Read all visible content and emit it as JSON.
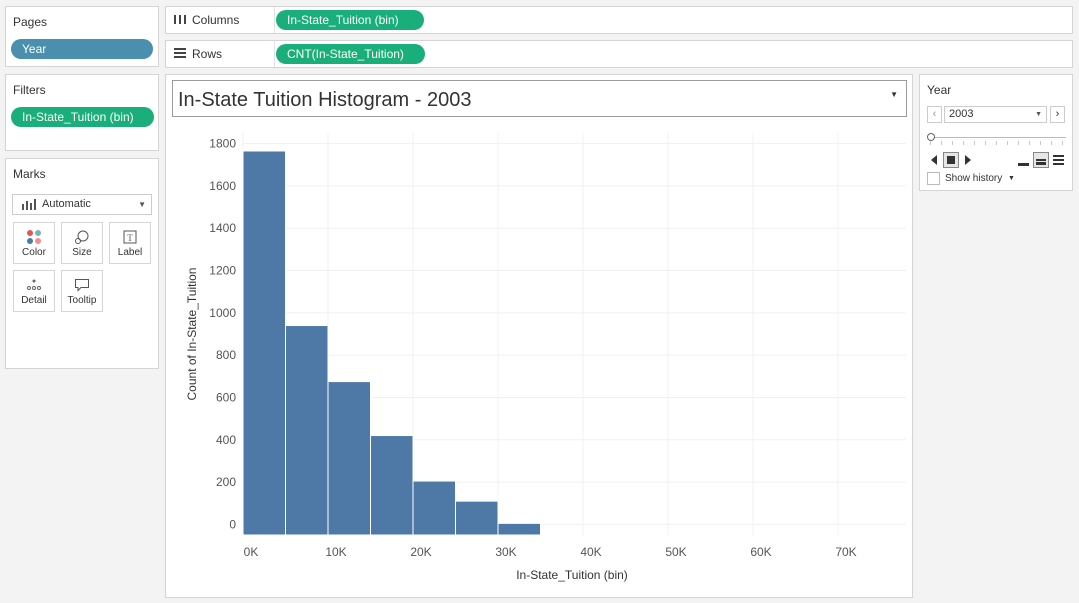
{
  "pages": {
    "title": "Pages",
    "pill": "Year"
  },
  "filters": {
    "title": "Filters",
    "pill": "In-State_Tuition (bin)"
  },
  "marks": {
    "title": "Marks",
    "type_value": "Automatic",
    "buttons": [
      "Color",
      "Size",
      "Label",
      "Detail",
      "Tooltip"
    ]
  },
  "columns": {
    "label": "Columns",
    "icon": "columns-icon",
    "pill": "In-State_Tuition (bin)"
  },
  "rows": {
    "label": "Rows",
    "icon": "rows-icon",
    "pill": "CNT(In-State_Tuition)"
  },
  "worksheet_title": "In-State Tuition Histogram - 2003",
  "year_control": {
    "title": "Year",
    "value": "2003",
    "show_history": "Show history"
  },
  "colors": {
    "bar": "#4e79a7",
    "green_pill": "#1aaf7a",
    "blue_pill": "#4a8fad"
  },
  "chart_data": {
    "type": "bar",
    "title": "In-State Tuition Histogram - 2003",
    "xlabel": "In-State_Tuition (bin)",
    "ylabel": "Count of In-State_Tuition",
    "bin_width": 5000,
    "bins": [
      0,
      5000,
      10000,
      15000,
      20000,
      25000,
      30000
    ],
    "values": [
      1765,
      940,
      675,
      420,
      205,
      110,
      5
    ],
    "xlim": [
      0,
      78000
    ],
    "ylim": [
      -50,
      1850
    ],
    "x_ticks": [
      {
        "value": 0,
        "label": "0K"
      },
      {
        "value": 10000,
        "label": "10K"
      },
      {
        "value": 20000,
        "label": "20K"
      },
      {
        "value": 30000,
        "label": "30K"
      },
      {
        "value": 40000,
        "label": "40K"
      },
      {
        "value": 50000,
        "label": "50K"
      },
      {
        "value": 60000,
        "label": "60K"
      },
      {
        "value": 70000,
        "label": "70K"
      }
    ],
    "y_ticks": [
      {
        "value": 0,
        "label": "0"
      },
      {
        "value": 200,
        "label": "200"
      },
      {
        "value": 400,
        "label": "400"
      },
      {
        "value": 600,
        "label": "600"
      },
      {
        "value": 800,
        "label": "800"
      },
      {
        "value": 1000,
        "label": "1000"
      },
      {
        "value": 1200,
        "label": "1200"
      },
      {
        "value": 1400,
        "label": "1400"
      },
      {
        "value": 1600,
        "label": "1600"
      },
      {
        "value": 1800,
        "label": "1800"
      }
    ],
    "grid": true
  }
}
